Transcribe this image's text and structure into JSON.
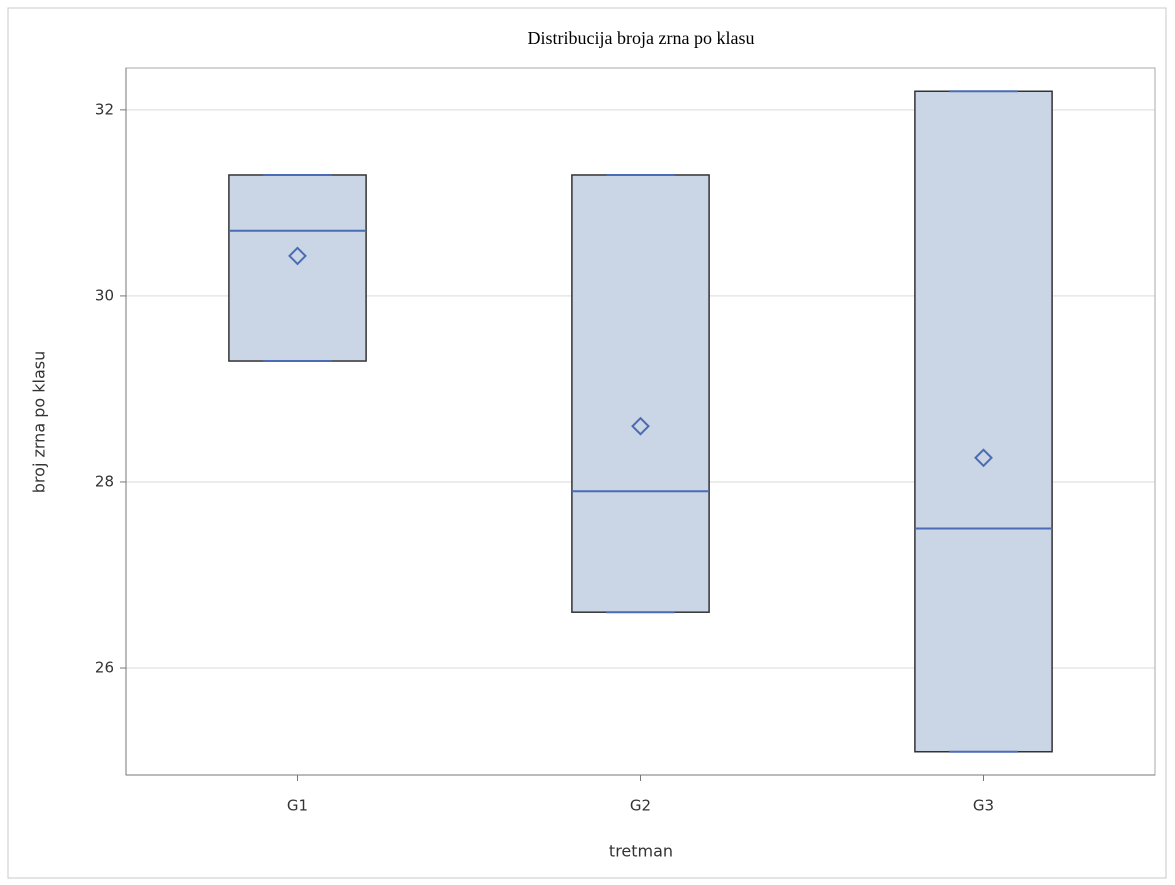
{
  "chart_data": {
    "type": "box",
    "title": "Distribucija broja zrna po klasu",
    "x_label": "tretman",
    "y_label": "broj zrna po klasu",
    "categories": [
      "G1",
      "G2",
      "G3"
    ],
    "boxes": [
      {
        "min": 29.3,
        "q1": 29.3,
        "median": 30.7,
        "q3": 31.3,
        "max": 31.3,
        "mean": 30.43
      },
      {
        "min": 26.6,
        "q1": 26.6,
        "median": 27.9,
        "q3": 31.3,
        "max": 31.3,
        "mean": 28.6
      },
      {
        "min": 25.1,
        "q1": 25.1,
        "median": 27.5,
        "q3": 32.2,
        "max": 32.2,
        "mean": 28.26
      }
    ],
    "color": "#cad5e5",
    "line_color": "#4a6cb5",
    "ylim": [
      24.85,
      32.45
    ],
    "yticks": [
      26,
      28,
      30,
      32
    ],
    "grid": true
  }
}
